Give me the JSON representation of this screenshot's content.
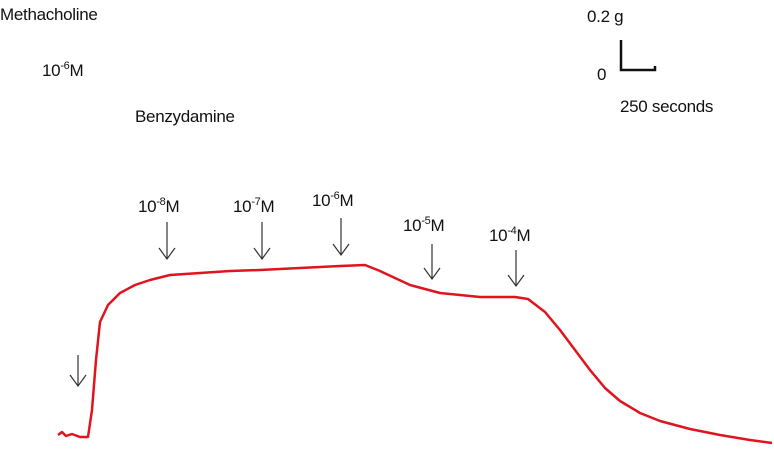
{
  "agonist": {
    "name": "Methacholine",
    "dose": {
      "base": "10",
      "exp": "-6",
      "unit": "M"
    }
  },
  "drug": {
    "name": "Benzydamine",
    "doses": [
      {
        "base": "10",
        "exp": "-8",
        "unit": "M"
      },
      {
        "base": "10",
        "exp": "-7",
        "unit": "M"
      },
      {
        "base": "10",
        "exp": "-6",
        "unit": "M"
      },
      {
        "base": "10",
        "exp": "-5",
        "unit": "M"
      },
      {
        "base": "10",
        "exp": "-4",
        "unit": "M"
      }
    ]
  },
  "scale_bar": {
    "force": "0.2 g",
    "zero": "0",
    "time": "250 seconds"
  }
}
